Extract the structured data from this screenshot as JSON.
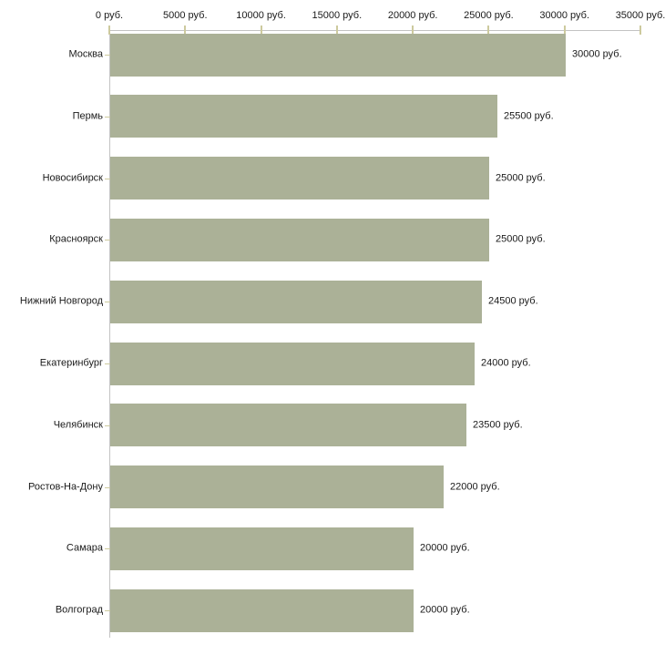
{
  "chart_data": {
    "type": "bar",
    "orientation": "horizontal",
    "title": "",
    "categories": [
      "Москва",
      "Пермь",
      "Новосибирск",
      "Красноярск",
      "Нижний Новгород",
      "Екатеринбург",
      "Челябинск",
      "Ростов-На-Дону",
      "Самара",
      "Волгоград"
    ],
    "values": [
      30000,
      25500,
      25000,
      25000,
      24500,
      24000,
      23500,
      22000,
      20000,
      20000
    ],
    "value_labels": [
      "30000 руб.",
      "25500 руб.",
      "25000 руб.",
      "25000 руб.",
      "24500 руб.",
      "24000 руб.",
      "23500 руб.",
      "22000 руб.",
      "20000 руб.",
      "20000 руб."
    ],
    "xlabel": "",
    "ylabel": "",
    "x_axis": {
      "position": "top",
      "min": 0,
      "max": 35000,
      "tick_step": 5000,
      "tick_values": [
        0,
        5000,
        10000,
        15000,
        20000,
        25000,
        30000,
        35000
      ],
      "tick_labels": [
        "0 руб.",
        "5000 руб.",
        "10000 руб.",
        "15000 руб.",
        "20000 руб.",
        "25000 руб.",
        "30000 руб.",
        "35000 руб."
      ]
    },
    "grid": false,
    "legend": false,
    "colors": {
      "bar": "#abb197",
      "axis_line": "#c3c3c3",
      "tick_mark": "#cdca9e",
      "text": "#1a1a1a",
      "background": "#ffffff"
    }
  }
}
